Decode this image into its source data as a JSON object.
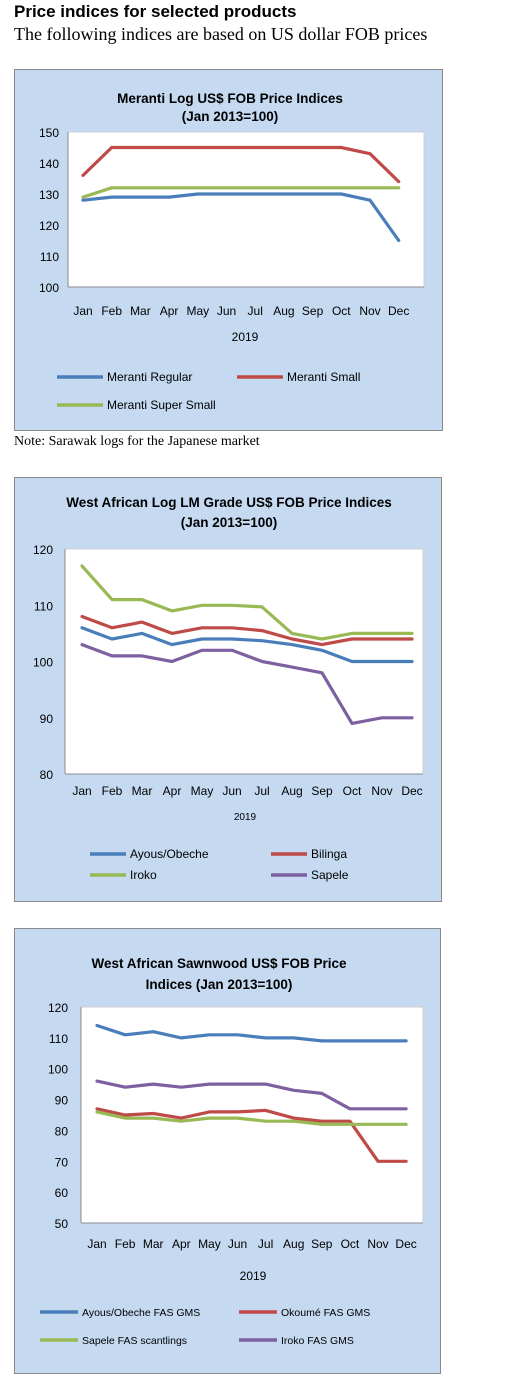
{
  "page": {
    "heading": "Price indices for selected products",
    "subheading": "The following indices are based on US dollar FOB prices",
    "note": "Note: Sarawak logs for the Japanese market"
  },
  "colors": {
    "panel_bg": "#c5d9f1",
    "plot_bg": "#ffffff",
    "blue": "#4a7ebb",
    "red": "#be4b48",
    "green": "#98b954",
    "purple": "#7d60a0"
  },
  "chart_data": [
    {
      "type": "line",
      "title": [
        "Meranti Log US$ FOB Price Indices",
        "(Jan 2013=100)"
      ],
      "categories": [
        "Jan",
        "Feb",
        "Mar",
        "Apr",
        "May",
        "Jun",
        "Jul",
        "Aug",
        "Sep",
        "Oct",
        "Nov",
        "Dec"
      ],
      "xlabel": "2019",
      "ylim": [
        100,
        150
      ],
      "yticks": [
        100,
        110,
        120,
        130,
        140,
        150
      ],
      "gridlines": false,
      "legend_position": "bottom",
      "series": [
        {
          "name": "Meranti Regular",
          "color": "#4a7ebb",
          "values": [
            128,
            129,
            129,
            129,
            130,
            130,
            130,
            130,
            130,
            130,
            128,
            115
          ]
        },
        {
          "name": "Meranti Small",
          "color": "#be4b48",
          "values": [
            136,
            145,
            145,
            145,
            145,
            145,
            145,
            145,
            145,
            145,
            143,
            134
          ]
        },
        {
          "name": "Meranti Super Small",
          "color": "#98b954",
          "values": [
            129,
            132,
            132,
            132,
            132,
            132,
            132,
            132,
            132,
            132,
            132,
            132
          ]
        }
      ]
    },
    {
      "type": "line",
      "title": [
        "West African Log LM Grade US$ FOB Price Indices",
        "(Jan 2013=100)"
      ],
      "categories": [
        "Jan",
        "Feb",
        "Mar",
        "Apr",
        "May",
        "Jun",
        "Jul",
        "Aug",
        "Sep",
        "Oct",
        "Nov",
        "Dec"
      ],
      "xlabel": "2019",
      "ylim": [
        80,
        120
      ],
      "yticks": [
        80,
        90,
        100,
        110,
        120
      ],
      "gridlines": false,
      "legend_position": "bottom",
      "series": [
        {
          "name": "Ayous/Obeche",
          "color": "#4a7ebb",
          "values": [
            106,
            104,
            105,
            103,
            104,
            104,
            103.7,
            103,
            102,
            100,
            100,
            100
          ]
        },
        {
          "name": "Bilinga",
          "color": "#be4b48",
          "values": [
            108,
            106,
            107,
            105,
            106,
            106,
            105.5,
            104,
            103,
            104,
            104,
            104
          ]
        },
        {
          "name": "Iroko",
          "color": "#98b954",
          "values": [
            117,
            111,
            111,
            109,
            110,
            110,
            109.7,
            105,
            104,
            105,
            105,
            105
          ]
        },
        {
          "name": "Sapele",
          "color": "#7d60a0",
          "values": [
            103,
            101,
            101,
            100,
            102,
            102,
            100,
            99,
            98,
            89,
            90,
            90
          ]
        }
      ]
    },
    {
      "type": "line",
      "title": [
        "West African Sawnwood US$ FOB Price",
        "Indices (Jan 2013=100)"
      ],
      "categories": [
        "Jan",
        "Feb",
        "Mar",
        "Apr",
        "May",
        "Jun",
        "Jul",
        "Aug",
        "Sep",
        "Oct",
        "Nov",
        "Dec"
      ],
      "xlabel": "2019",
      "ylim": [
        50,
        120
      ],
      "yticks": [
        50,
        60,
        70,
        80,
        90,
        100,
        110,
        120
      ],
      "gridlines": false,
      "legend_position": "bottom",
      "series": [
        {
          "name": "Ayous/Obeche  FAS GMS",
          "color": "#4a7ebb",
          "values": [
            114,
            111,
            112,
            110,
            111,
            111,
            110,
            110,
            109,
            109,
            109,
            109
          ]
        },
        {
          "name": "Okoumé  FAS GMS",
          "color": "#be4b48",
          "values": [
            87,
            85,
            85.5,
            84,
            86,
            86,
            86.5,
            84,
            83,
            83,
            70,
            70
          ]
        },
        {
          "name": "Sapele FAS scantlings",
          "color": "#98b954",
          "values": [
            86,
            84,
            84,
            83,
            84,
            84,
            83,
            83,
            82,
            82,
            82,
            82
          ]
        },
        {
          "name": "Iroko FAS GMS",
          "color": "#7d60a0",
          "values": [
            96,
            94,
            95,
            94,
            95,
            95,
            95,
            93,
            92,
            87,
            87,
            87
          ]
        }
      ]
    }
  ]
}
